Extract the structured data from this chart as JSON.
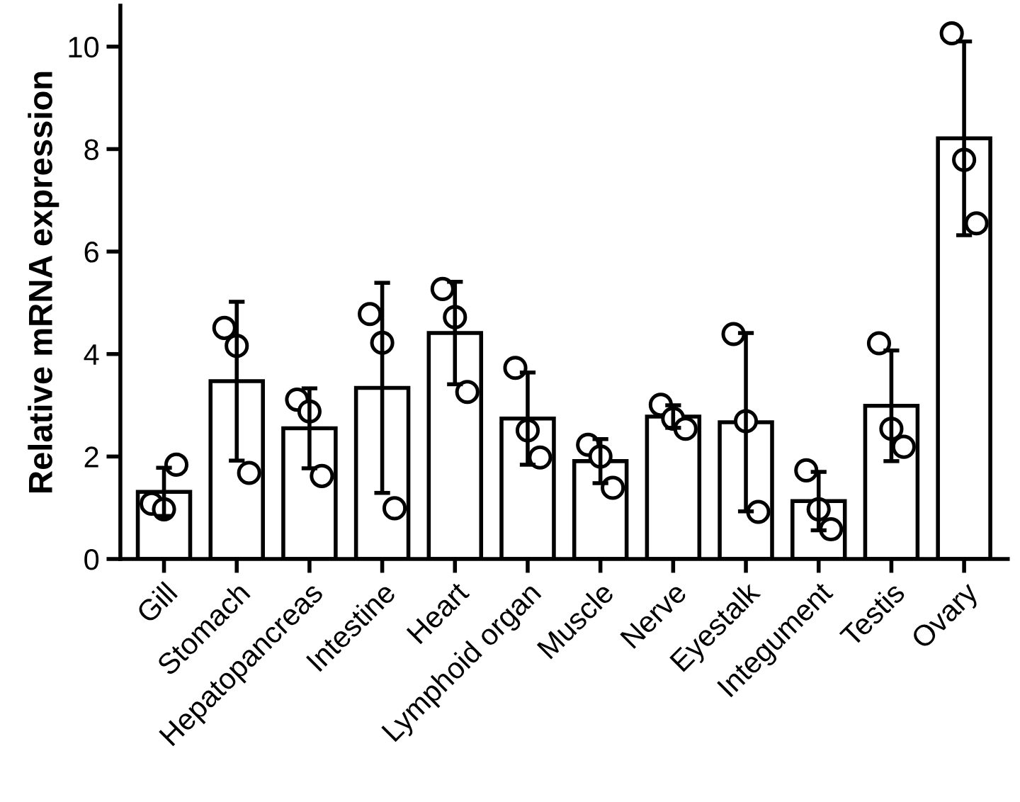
{
  "chart_data": {
    "type": "bar",
    "ylabel": "Relative mRNA expression",
    "categories": [
      "Gill",
      "Stomach",
      "Hepatopancreas",
      "Intestine",
      "Heart",
      "Lymphoid organ",
      "Muscle",
      "Nerve",
      "Eyestalk",
      "Integument",
      "Testis",
      "Ovary"
    ],
    "series": [
      {
        "color": "#ffffff",
        "values": [
          1.31,
          3.47,
          2.55,
          3.34,
          4.41,
          2.74,
          1.91,
          2.78,
          2.67,
          1.13,
          2.99,
          8.21
        ],
        "errors": [
          0.47,
          1.55,
          0.78,
          2.05,
          1.0,
          0.9,
          0.43,
          0.22,
          1.74,
          0.57,
          1.08,
          1.89
        ]
      },
      {
        "type": "scatter",
        "color": "#ffffff",
        "x": [
          "Gill",
          "Gill",
          "Gill",
          "Stomach",
          "Stomach",
          "Stomach",
          "Hepatopancreas",
          "Hepatopancreas",
          "Hepatopancreas",
          "Intestine",
          "Intestine",
          "Intestine",
          "Heart",
          "Heart",
          "Heart",
          "Lymphoid organ",
          "Lymphoid organ",
          "Lymphoid organ",
          "Muscle",
          "Muscle",
          "Muscle",
          "Nerve",
          "Nerve",
          "Nerve",
          "Eyestalk",
          "Eyestalk",
          "Eyestalk",
          "Integument",
          "Integument",
          "Integument",
          "Testis",
          "Testis",
          "Testis",
          "Ovary",
          "Ovary",
          "Ovary"
        ],
        "values": [
          1.08,
          0.97,
          1.84,
          4.51,
          4.16,
          1.68,
          3.11,
          2.88,
          1.62,
          4.78,
          4.22,
          0.99,
          5.27,
          4.72,
          3.26,
          3.73,
          2.51,
          1.98,
          2.23,
          2.0,
          1.39,
          3.01,
          2.74,
          2.54,
          4.39,
          2.69,
          0.92,
          1.73,
          0.97,
          0.58,
          4.21,
          2.54,
          2.19,
          10.26,
          7.79,
          6.55
        ]
      }
    ],
    "ylim": [
      0,
      10.8
    ],
    "yticks": [
      0,
      2,
      4,
      6,
      8,
      10
    ],
    "grid": false,
    "legend": false,
    "marker": "circle"
  }
}
